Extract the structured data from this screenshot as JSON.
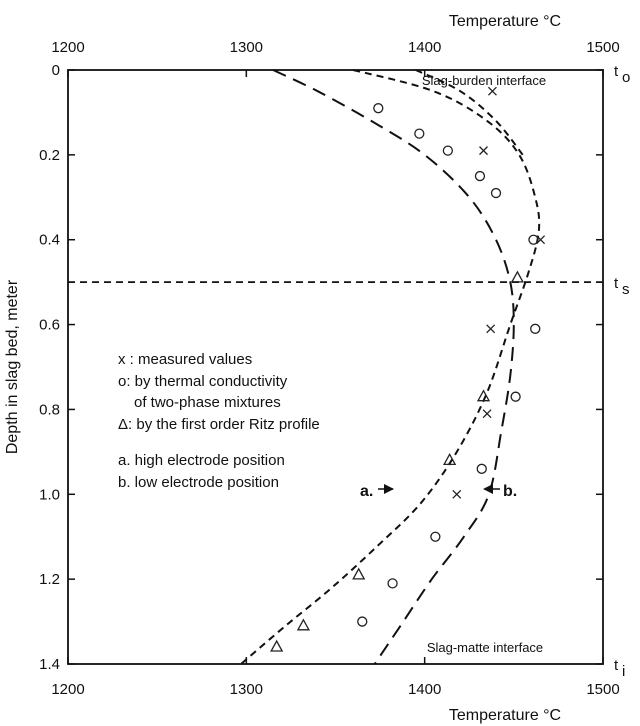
{
  "chart_data": {
    "type": "scatter",
    "x_axis_title_top": "Temperature °C",
    "x_axis_title_bottom": "Temperature °C",
    "y_axis_title": "Depth in slag bed, meter",
    "xlim": [
      1200,
      1500
    ],
    "ylim": [
      0,
      1.4
    ],
    "y_inverted": true,
    "x_ticks": [
      1200,
      1300,
      1400,
      1500
    ],
    "x_tick_labels": [
      "1200",
      "1300",
      "1400",
      "1500"
    ],
    "y_ticks": [
      0,
      0.2,
      0.4,
      0.6,
      0.8,
      1.0,
      1.2,
      1.4
    ],
    "y_tick_labels": [
      "0",
      "0.2",
      "0.4",
      "0.6",
      "0.8",
      "1.0",
      "1.2",
      "1.4"
    ],
    "right_labels": [
      {
        "main": "t",
        "sub": "o",
        "depth": 0
      },
      {
        "main": "t",
        "sub": "s",
        "depth": 0.5
      },
      {
        "main": "t",
        "sub": "i",
        "depth": 1.4
      }
    ],
    "horizontal_line_depth": 0.5,
    "annotations": {
      "top": "Slag-burden interface",
      "bottom": "Slag-matte interface",
      "arrow_a": "a.",
      "arrow_b": "b."
    },
    "legend": [
      "x : measured values",
      "o: by thermal conductivity",
      "of two-phase mixtures",
      "Δ: by the first order Ritz profile",
      "a. high electrode position",
      "b. low electrode position"
    ],
    "series": [
      {
        "name": "x : measured values",
        "marker": "x",
        "points": [
          [
            1438,
            0.05
          ],
          [
            1433,
            0.19
          ],
          [
            1465,
            0.4
          ],
          [
            1437,
            0.61
          ],
          [
            1435,
            0.81
          ],
          [
            1418,
            1.0
          ]
        ]
      },
      {
        "name": "o: by thermal conductivity of two-phase mixtures",
        "marker": "circle",
        "points": [
          [
            1374,
            0.09
          ],
          [
            1397,
            0.15
          ],
          [
            1413,
            0.19
          ],
          [
            1431,
            0.25
          ],
          [
            1440,
            0.29
          ],
          [
            1461,
            0.4
          ],
          [
            1462,
            0.61
          ],
          [
            1451,
            0.77
          ],
          [
            1432,
            0.94
          ],
          [
            1406,
            1.1
          ],
          [
            1382,
            1.21
          ],
          [
            1365,
            1.3
          ]
        ]
      },
      {
        "name": "Δ: by the first order Ritz profile",
        "marker": "triangle",
        "points": [
          [
            1452,
            0.49
          ],
          [
            1433,
            0.77
          ],
          [
            1414,
            0.92
          ],
          [
            1363,
            1.19
          ],
          [
            1332,
            1.31
          ],
          [
            1317,
            1.36
          ]
        ]
      },
      {
        "name": "a. high electrode position",
        "marker": "none",
        "dash": "short",
        "points": [
          [
            1360,
            0
          ],
          [
            1405,
            0.05
          ],
          [
            1435,
            0.12
          ],
          [
            1453,
            0.2
          ],
          [
            1462,
            0.3
          ],
          [
            1464,
            0.38
          ],
          [
            1458,
            0.48
          ],
          [
            1448,
            0.6
          ],
          [
            1435,
            0.76
          ],
          [
            1418,
            0.9
          ],
          [
            1398,
            1.02
          ],
          [
            1374,
            1.12
          ],
          [
            1348,
            1.22
          ],
          [
            1322,
            1.31
          ],
          [
            1297,
            1.4
          ]
        ]
      },
      {
        "name": "Curve through slag-burden interface",
        "marker": "none",
        "dash": "short",
        "points": [
          [
            1395,
            0
          ],
          [
            1420,
            0.05
          ],
          [
            1440,
            0.12
          ],
          [
            1455,
            0.2
          ]
        ]
      },
      {
        "name": "b. low electrode position",
        "marker": "none",
        "dash": "long",
        "points": [
          [
            1315,
            0
          ],
          [
            1340,
            0.05
          ],
          [
            1370,
            0.12
          ],
          [
            1400,
            0.2
          ],
          [
            1425,
            0.3
          ],
          [
            1440,
            0.4
          ],
          [
            1448,
            0.5
          ],
          [
            1450,
            0.6
          ],
          [
            1448,
            0.72
          ],
          [
            1443,
            0.85
          ],
          [
            1436,
            1.0
          ],
          [
            1422,
            1.1
          ],
          [
            1404,
            1.2
          ],
          [
            1388,
            1.3
          ],
          [
            1372,
            1.4
          ]
        ]
      }
    ]
  }
}
